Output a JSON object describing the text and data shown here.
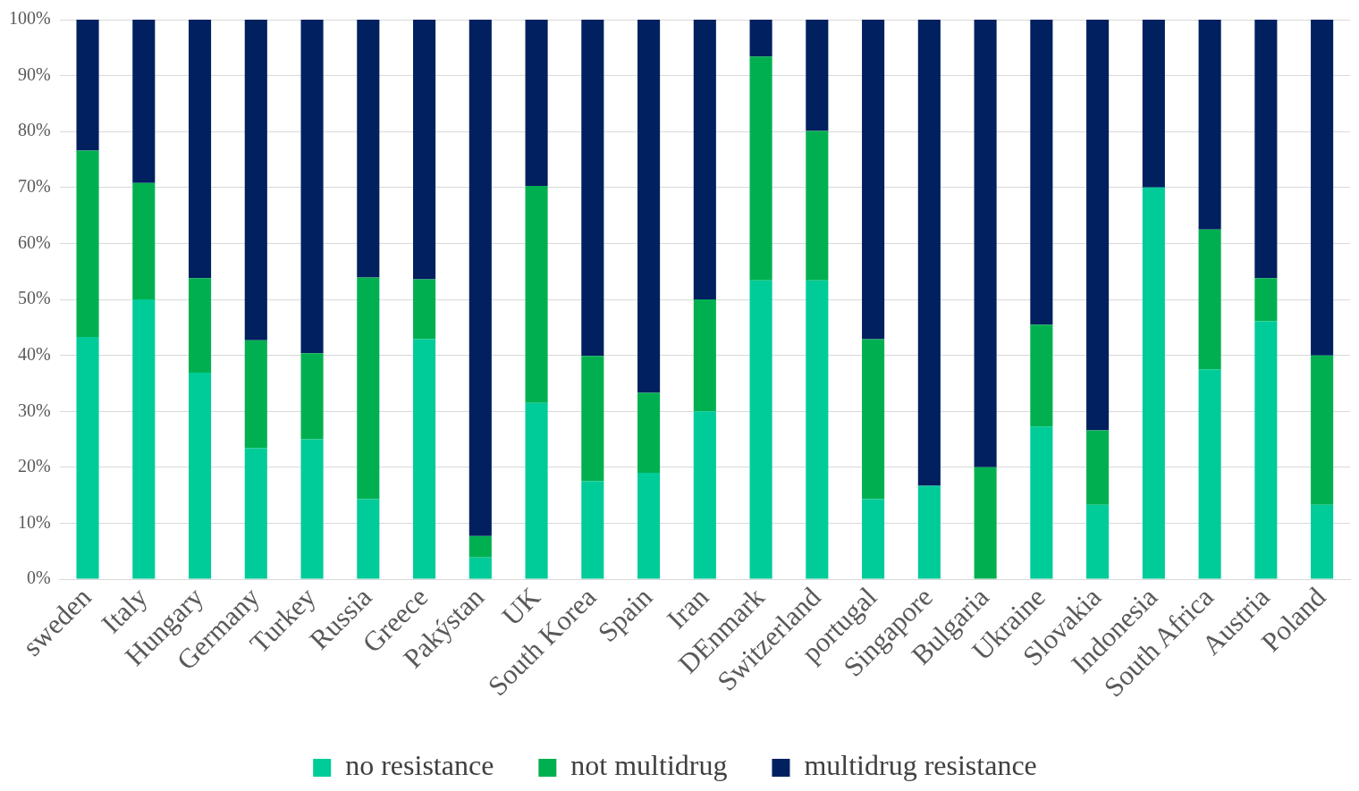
{
  "chart_data": {
    "type": "bar",
    "stacked": true,
    "categories": [
      "sweden",
      "Italy",
      "Hungary",
      "Germany",
      "Turkey",
      "Russia",
      "Greece",
      "Pakýstan",
      "UK",
      "South Korea",
      "Spain",
      "Iran",
      "DEnmark",
      "Switzerland",
      "portugal",
      "Singapore",
      "Bulgaria",
      "Ukraine",
      "Slovakia",
      "Indonesia",
      "South Africa",
      "Austria",
      "Poland"
    ],
    "series": [
      {
        "name": "no resistance",
        "color": "#00cc99",
        "values": [
          43.3,
          50,
          36.9,
          23.4,
          25,
          14.3,
          42.9,
          3.9,
          31.5,
          17.5,
          19,
          30,
          53.4,
          53.4,
          14.3,
          16.7,
          0,
          27.3,
          13.3,
          70,
          37.5,
          46.1,
          13.3
        ]
      },
      {
        "name": "not multidrug",
        "color": "#00b050",
        "values": [
          33.3,
          20.8,
          16.9,
          19.3,
          15.4,
          39.6,
          10.7,
          3.8,
          38.8,
          22.4,
          14.3,
          20,
          40,
          26.7,
          28.6,
          0,
          20,
          18.2,
          13.3,
          0,
          25,
          7.7,
          26.7
        ]
      },
      {
        "name": "multidrug resistance",
        "color": "#002060",
        "values": [
          23.4,
          29.2,
          46.2,
          57.3,
          59.6,
          46.1,
          46.4,
          92.3,
          29.7,
          60.1,
          66.7,
          50,
          6.6,
          19.9,
          57.1,
          83.3,
          80,
          54.5,
          73.4,
          30,
          37.5,
          46.2,
          60
        ]
      }
    ],
    "ylim": [
      0,
      100
    ],
    "yticks": [
      {
        "value": 0,
        "label": "0%"
      },
      {
        "value": 10,
        "label": "10%"
      },
      {
        "value": 20,
        "label": "20%"
      },
      {
        "value": 30,
        "label": "30%"
      },
      {
        "value": 40,
        "label": "40%"
      },
      {
        "value": 50,
        "label": "50%"
      },
      {
        "value": 60,
        "label": "60%"
      },
      {
        "value": 70,
        "label": "70%"
      },
      {
        "value": 80,
        "label": "80%"
      },
      {
        "value": 90,
        "label": "90%"
      },
      {
        "value": 100,
        "label": "100%"
      }
    ],
    "grid": "y",
    "legend": "bottom"
  }
}
